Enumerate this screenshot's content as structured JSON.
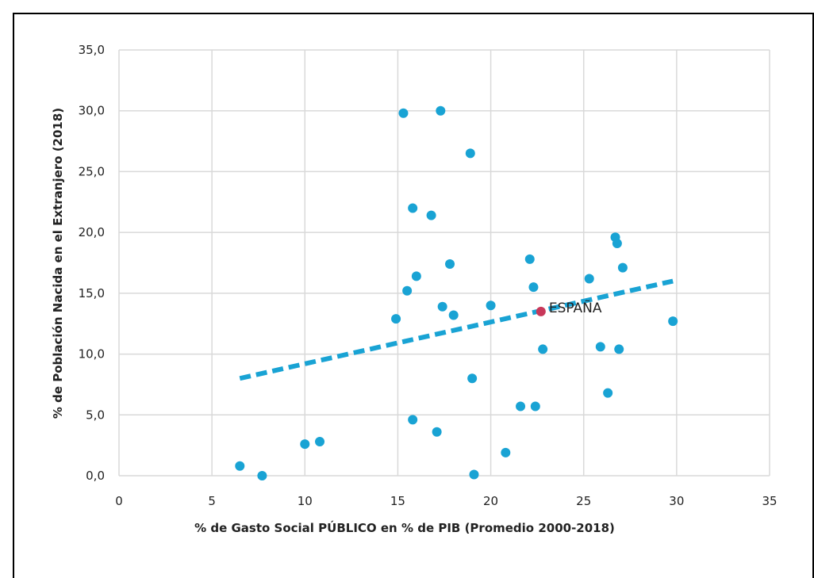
{
  "chart_data": {
    "type": "scatter",
    "title": "",
    "xlabel": "% de Gasto Social PÚBLICO en % de PIB (Promedio 2000-2018)",
    "ylabel": "% de Población Nacida en el Extranjero (2018)",
    "xlim": [
      0,
      35
    ],
    "ylim": [
      0,
      35
    ],
    "x_ticks": [
      "0",
      "5",
      "10",
      "15",
      "20",
      "25",
      "30",
      "35"
    ],
    "y_ticks": [
      "0,0",
      "5,0",
      "10,0",
      "15,0",
      "20,0",
      "25,0",
      "30,0",
      "35,0"
    ],
    "grid": true,
    "colors": {
      "points": "#19a3d4",
      "trendline": "#19a3d4",
      "highlight": "#c8385a",
      "grid": "#d9d9d9"
    },
    "series": [
      {
        "values": [
          {
            "x": 6.5,
            "y": 0.8
          },
          {
            "x": 7.7,
            "y": 0.0
          },
          {
            "x": 10.0,
            "y": 2.6
          },
          {
            "x": 10.8,
            "y": 2.8
          },
          {
            "x": 14.9,
            "y": 12.9
          },
          {
            "x": 15.3,
            "y": 29.8
          },
          {
            "x": 15.5,
            "y": 15.2
          },
          {
            "x": 15.8,
            "y": 22.0
          },
          {
            "x": 15.8,
            "y": 4.6
          },
          {
            "x": 16.0,
            "y": 16.4
          },
          {
            "x": 16.8,
            "y": 21.4
          },
          {
            "x": 17.1,
            "y": 3.6
          },
          {
            "x": 17.3,
            "y": 30.0
          },
          {
            "x": 17.4,
            "y": 13.9
          },
          {
            "x": 17.8,
            "y": 17.4
          },
          {
            "x": 18.0,
            "y": 13.2
          },
          {
            "x": 18.9,
            "y": 26.5
          },
          {
            "x": 19.0,
            "y": 8.0
          },
          {
            "x": 19.1,
            "y": 0.1
          },
          {
            "x": 20.0,
            "y": 14.0
          },
          {
            "x": 20.8,
            "y": 1.9
          },
          {
            "x": 21.6,
            "y": 5.7
          },
          {
            "x": 22.1,
            "y": 17.8
          },
          {
            "x": 22.3,
            "y": 15.5
          },
          {
            "x": 22.4,
            "y": 5.7
          },
          {
            "x": 22.8,
            "y": 10.4
          },
          {
            "x": 25.3,
            "y": 16.2
          },
          {
            "x": 25.9,
            "y": 10.6
          },
          {
            "x": 26.3,
            "y": 6.8
          },
          {
            "x": 26.7,
            "y": 19.6
          },
          {
            "x": 26.8,
            "y": 19.1
          },
          {
            "x": 26.9,
            "y": 10.4
          },
          {
            "x": 27.1,
            "y": 17.1
          },
          {
            "x": 29.8,
            "y": 12.7
          }
        ]
      }
    ],
    "highlight": {
      "label": "ESPAÑA",
      "x": 22.7,
      "y": 13.5
    },
    "trendline": {
      "x": [
        6.5,
        29.8
      ],
      "y": [
        8.0,
        16.0
      ],
      "style": "dashed"
    }
  }
}
